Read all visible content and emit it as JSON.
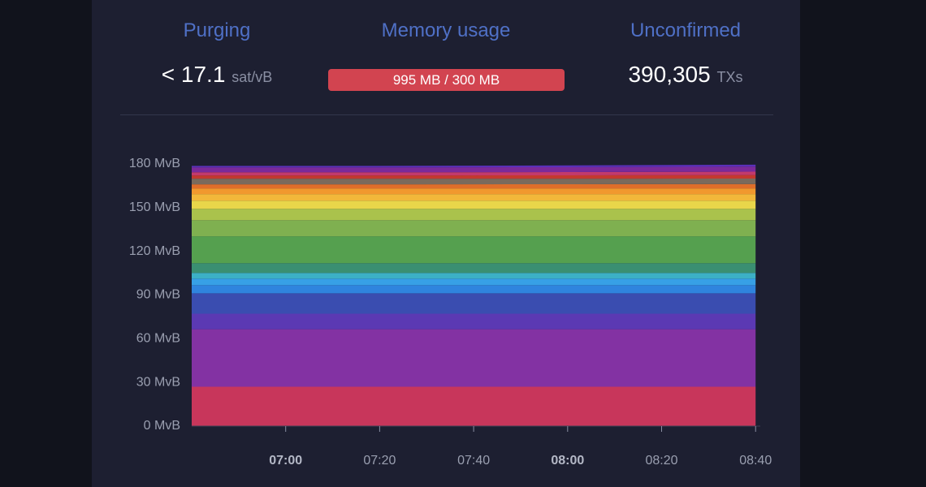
{
  "stats": [
    {
      "label": "Purging",
      "value": "< 17.1",
      "unit": "sat/vB"
    },
    {
      "label": "Memory usage",
      "value": "995 MB / 300 MB"
    },
    {
      "label": "Unconfirmed",
      "value": "390,305",
      "unit": "TXs"
    }
  ],
  "chart_data": {
    "type": "stacked-area",
    "x": [
      "06:40",
      "07:20",
      "08:00",
      "08:40"
    ],
    "xlim": [
      "06:40",
      "08:41"
    ],
    "xticks": [
      "07:00",
      "07:20",
      "07:40",
      "08:00",
      "08:20",
      "08:40"
    ],
    "ylim": [
      0,
      180
    ],
    "yticks": [
      {
        "value": 0,
        "label": "0 MvB"
      },
      {
        "value": 30,
        "label": "30 MvB"
      },
      {
        "value": 60,
        "label": "60 MvB"
      },
      {
        "value": 90,
        "label": "90 MvB"
      },
      {
        "value": 120,
        "label": "120 MvB"
      },
      {
        "value": 150,
        "label": "150 MvB"
      },
      {
        "value": 180,
        "label": "180 MvB"
      }
    ],
    "series": [
      {
        "color": "#c8365b",
        "values": [
          27,
          27,
          27,
          27
        ]
      },
      {
        "color": "#8332a3",
        "values": [
          39.5,
          39.5,
          39.5,
          39.5
        ]
      },
      {
        "color": "#5b39b3",
        "values": [
          10.7,
          10.7,
          10.7,
          10.7
        ]
      },
      {
        "color": "#3a4db0",
        "values": [
          14,
          14,
          14,
          14
        ]
      },
      {
        "color": "#2f84de",
        "values": [
          5.6,
          5.6,
          5.6,
          5.6
        ]
      },
      {
        "color": "#37a0e6",
        "values": [
          4.5,
          4.5,
          4.5,
          4.5
        ]
      },
      {
        "color": "#3cb0c6",
        "values": [
          3.9,
          3.9,
          3.9,
          3.9
        ]
      },
      {
        "color": "#3a8f72",
        "values": [
          6.7,
          6.7,
          6.7,
          6.7
        ]
      },
      {
        "color": "#55a04f",
        "values": [
          18.4,
          18.4,
          18.4,
          18.4
        ]
      },
      {
        "color": "#7fb050",
        "values": [
          11.1,
          11.1,
          11.1,
          11.1
        ]
      },
      {
        "color": "#aac24c",
        "values": [
          7.8,
          7.8,
          7.8,
          7.8
        ]
      },
      {
        "color": "#e8d64a",
        "values": [
          5.6,
          5.6,
          5.6,
          5.6
        ]
      },
      {
        "color": "#f2b73a",
        "values": [
          4.5,
          4.5,
          4.5,
          4.5
        ]
      },
      {
        "color": "#f1982e",
        "values": [
          3.9,
          3.9,
          3.9,
          3.9
        ]
      },
      {
        "color": "#df6e2a",
        "values": [
          2.8,
          2.8,
          2.9,
          3
        ]
      },
      {
        "color": "#7a6a5c",
        "values": [
          3.9,
          3.9,
          3.8,
          3.8
        ]
      },
      {
        "color": "#c4392f",
        "values": [
          2.2,
          2.2,
          2.3,
          2.4
        ]
      },
      {
        "color": "#c33a6c",
        "values": [
          2.2,
          2.2,
          2.2,
          2.3
        ]
      },
      {
        "color": "#7b2a9a",
        "values": [
          3.3,
          3.3,
          3.4,
          3.5
        ]
      },
      {
        "color": "#5a30b8",
        "values": [
          1.1,
          1.1,
          1.2,
          1.3
        ]
      }
    ]
  }
}
